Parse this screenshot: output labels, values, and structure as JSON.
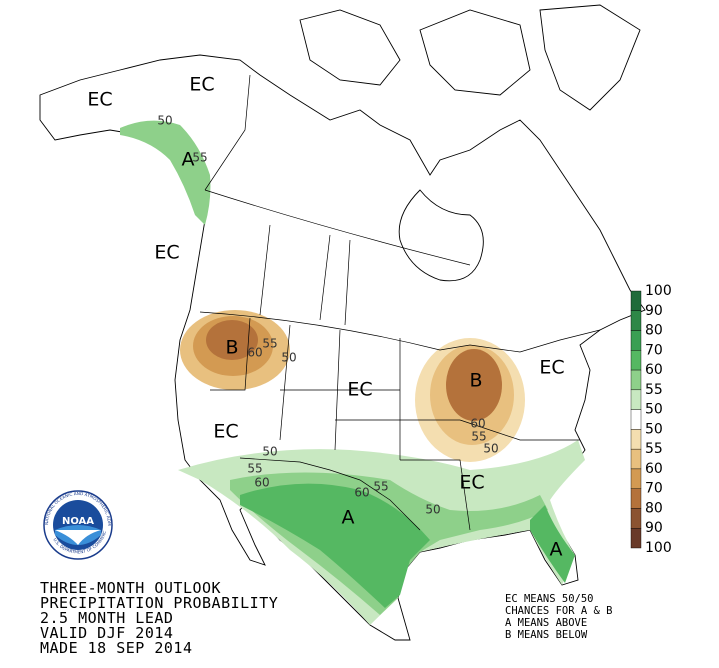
{
  "title_lines": [
    "THREE-MONTH OUTLOOK",
    "PRECIPITATION PROBABILITY",
    "2.5 MONTH LEAD",
    "VALID DJF 2014",
    "MADE 18 SEP 2014"
  ],
  "notes": [
    "EC MEANS 50/50",
    "CHANCES FOR A & B",
    "A MEANS ABOVE",
    "B MEANS BELOW"
  ],
  "logo": {
    "text": "NOAA",
    "ring_top": "NATIONAL OCEANIC AND ATMOSPHERIC ADMINISTRATION",
    "ring_bottom": "U.S. DEPARTMENT OF COMMERCE"
  },
  "legend": {
    "labels": [
      "100",
      "90",
      "80",
      "70",
      "60",
      "55",
      "50",
      "50",
      "55",
      "60",
      "70",
      "80",
      "90",
      "100"
    ],
    "colors": [
      "#1f6b3a",
      "#2e8747",
      "#3a9f53",
      "#55b862",
      "#8ed08a",
      "#c8e8c1",
      "#ffffff",
      "#f4deb0",
      "#e8c07f",
      "#d39a52",
      "#b4723b",
      "#8b5331",
      "#693a29"
    ]
  },
  "map_labels": [
    "EC",
    "EC",
    "EC",
    "EC",
    "EC",
    "EC",
    "EC",
    "A",
    "50",
    "55",
    "B",
    "55",
    "60",
    "50",
    "B",
    "60",
    "55",
    "50",
    "50",
    "55",
    "60",
    "60",
    "55",
    "A",
    "50",
    "A"
  ]
}
